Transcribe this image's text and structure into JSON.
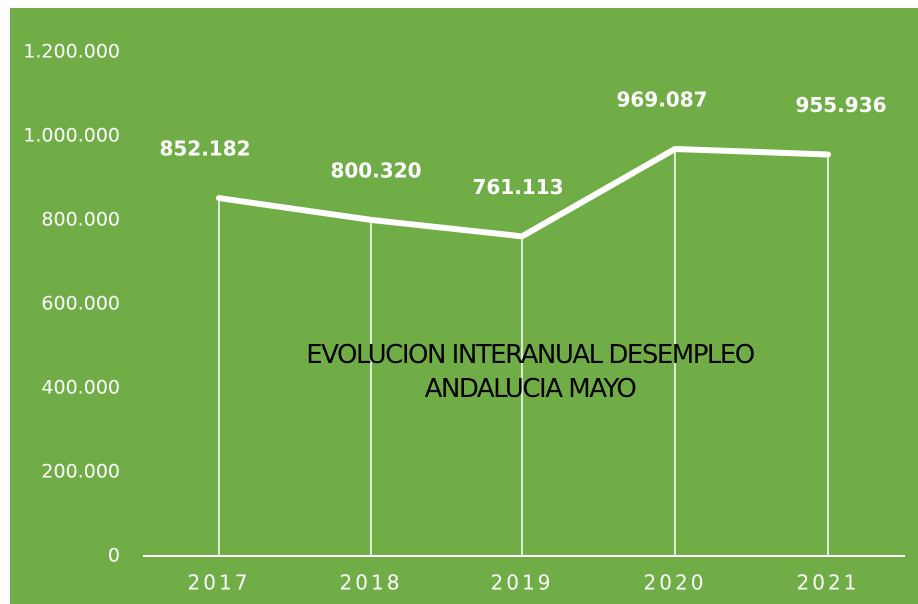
{
  "chart_data": {
    "type": "line",
    "title": "EVOLUCION INTERANUAL DESEMPLEO ANDALUCIA MAYO",
    "categories": [
      "2017",
      "2018",
      "2019",
      "2020",
      "2021"
    ],
    "values": [
      852182,
      800320,
      761113,
      969087,
      955936
    ],
    "value_labels": [
      "852.182",
      "800.320",
      "761.113",
      "969.087",
      "955.936"
    ],
    "color": "#ffffff",
    "ylim": [
      0,
      1200000
    ],
    "yticks": [
      0,
      {
        "value": 200000,
        "label": "200.000"
      },
      {
        "value": 400000,
        "label": "400.000"
      },
      {
        "value": 600000,
        "label": "600.000"
      },
      {
        "value": 800000,
        "label": "800.000"
      },
      {
        "value": 1000000,
        "label": "1.000.000"
      },
      {
        "value": 1200000,
        "label": "1.200.000"
      }
    ],
    "grid": false
  }
}
